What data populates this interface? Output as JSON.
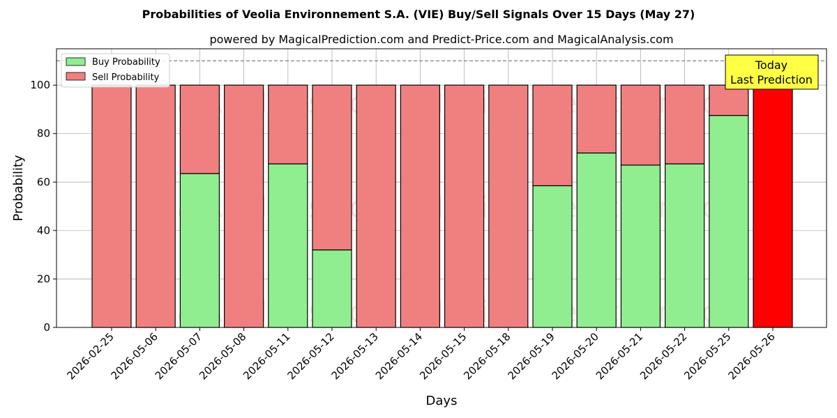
{
  "chart_data": {
    "type": "bar",
    "stacked": true,
    "title": "Probabilities of Veolia Environnement S.A. (VIE) Buy/Sell Signals Over 15 Days (May 27)",
    "subtitle": "powered by MagicalPrediction.com and Predict-Price.com and MagicalAnalysis.com",
    "xlabel": "Days",
    "ylabel": "Probability",
    "ylim": [
      0,
      115
    ],
    "yticks": [
      0,
      20,
      40,
      60,
      80,
      100
    ],
    "reference_line": 110,
    "grid": true,
    "legend_position": "top-left",
    "categories": [
      "2026-02-25",
      "2026-05-06",
      "2026-05-07",
      "2026-05-08",
      "2026-05-11",
      "2026-05-12",
      "2026-05-13",
      "2026-05-14",
      "2026-05-15",
      "2026-05-18",
      "2026-05-19",
      "2026-05-20",
      "2026-05-21",
      "2026-05-22",
      "2026-05-25",
      "2026-05-26"
    ],
    "series": [
      {
        "name": "Buy Probability",
        "color": "#90ee90",
        "values": [
          0,
          0,
          63.5,
          0,
          67.5,
          32,
          0,
          0,
          0,
          0,
          58.5,
          72,
          67,
          67.5,
          87.5,
          0
        ]
      },
      {
        "name": "Sell Probability",
        "color": "#f08080",
        "values": [
          100,
          100,
          36.5,
          100,
          32.5,
          68,
          100,
          100,
          100,
          100,
          41.5,
          28,
          33,
          32.5,
          12.5,
          100
        ]
      }
    ],
    "highlight": {
      "index": 15,
      "color": "#ff0000"
    },
    "annotation": {
      "line1": "Today",
      "line2": "Last Prediction",
      "color": "#ffff44"
    },
    "watermarks": [
      "MagicalAnalysis.com",
      "MagicalPrediction.com",
      "MagicalAnalysis.com",
      "MagicalPrediction.com",
      "MagicalAnalysis.com",
      "MagicalPrediction.com"
    ]
  }
}
